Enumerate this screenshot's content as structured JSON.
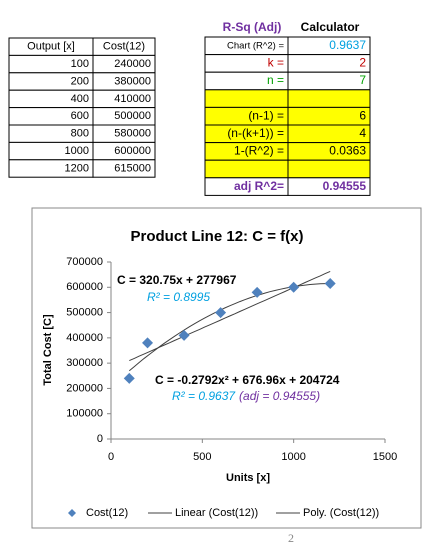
{
  "left_table": {
    "header": [
      "Output [x]",
      "Cost(12)"
    ],
    "rows": [
      [
        100,
        240000
      ],
      [
        200,
        380000
      ],
      [
        400,
        410000
      ],
      [
        600,
        500000
      ],
      [
        800,
        580000
      ],
      [
        1000,
        600000
      ],
      [
        1200,
        615000
      ]
    ]
  },
  "calc_table": {
    "header": [
      "R-Sq (Adj)",
      "Calculator"
    ],
    "header_colors": [
      "#7030a0",
      "#000000"
    ],
    "rows": [
      {
        "label": "Chart (R^2) =",
        "value": 0.9637,
        "color": "#00a0e0",
        "fill": "#ffffff"
      },
      {
        "label": "k =",
        "value": 2,
        "color": "#c00000",
        "fill": "#ffffff"
      },
      {
        "label": "n =",
        "value": 7,
        "color": "#00a000",
        "fill": "#ffffff"
      },
      {
        "fill": "#ffff00"
      },
      {
        "label": "(n-1) =",
        "value": 6,
        "color": "#000000",
        "fill": "#ffff00"
      },
      {
        "label": "(n-(k+1)) =",
        "value": 4,
        "color": "#000000",
        "fill": "#ffff00"
      },
      {
        "label": "1-(R^2) =",
        "value": 0.0363,
        "color": "#000000",
        "fill": "#ffff00"
      },
      {
        "fill": "#ffff00"
      },
      {
        "label": "adj R^2=",
        "value": 0.94555,
        "color": "#7030a0",
        "fill": "#ffffff"
      }
    ]
  },
  "chart_data": {
    "type": "scatter",
    "title": "Product Line 12:  C = f(x)",
    "x_label": "Units [x]",
    "y_label": "Total Cost [C]",
    "x": [
      100,
      200,
      400,
      600,
      800,
      1000,
      1200
    ],
    "series": [
      {
        "name": "Cost(12)",
        "color": "#4f81bd",
        "values": [
          240000,
          380000,
          410000,
          500000,
          580000,
          600000,
          615000
        ]
      }
    ],
    "trendlines": [
      {
        "name": "Linear (Cost(12))",
        "kind": "linear",
        "coefficients": [
          320.75,
          277967
        ],
        "color": "#404040",
        "equation": "C = 320.75x + 277967",
        "r2_label": "R² = 0.8995"
      },
      {
        "name": "Poly. (Cost(12))",
        "kind": "poly",
        "coefficients": [
          -0.2792,
          676.96,
          204724
        ],
        "color": "#404040",
        "equation": "C = -0.2792x² + 676.96x + 204724",
        "r2_label": "R² = 0.9637",
        "adj_label": "(adj = 0.94555)"
      }
    ],
    "xlim": [
      0,
      1500
    ],
    "xticks": [
      0,
      500,
      1000,
      1500
    ],
    "ylim": [
      0,
      700000
    ],
    "yticks": [
      0,
      100000,
      200000,
      300000,
      400000,
      500000,
      600000,
      700000
    ],
    "grid": false,
    "legend": "bottom"
  },
  "page_number": "2"
}
